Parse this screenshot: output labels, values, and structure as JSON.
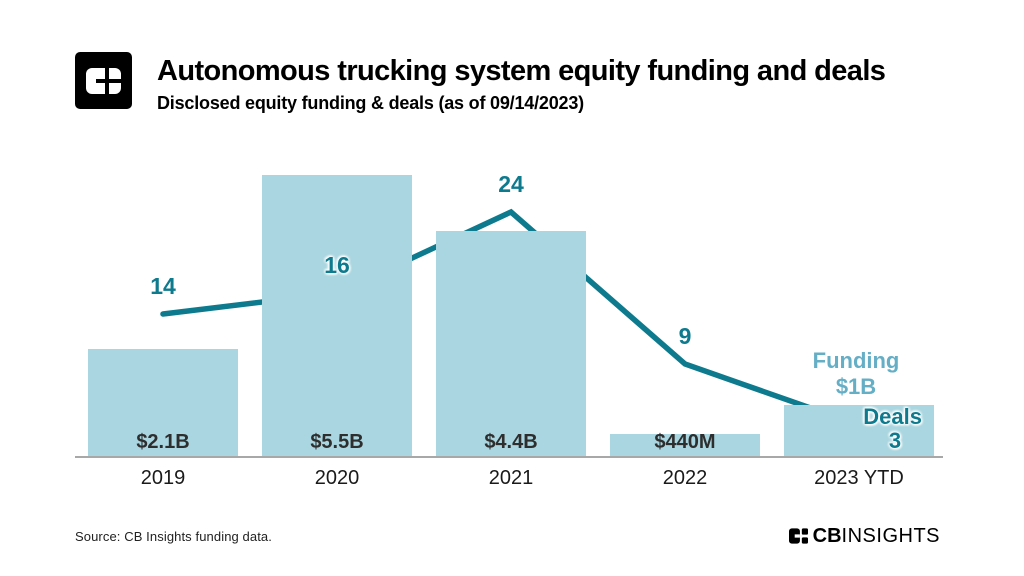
{
  "header": {
    "title": "Autonomous trucking system equity funding and deals",
    "subtitle": "Disclosed equity funding & deals (as of 09/14/2023)"
  },
  "chart_data": {
    "type": "bar+line",
    "title": "Autonomous trucking system equity funding and deals",
    "categories": [
      "2019",
      "2020",
      "2021",
      "2022",
      "2023 YTD"
    ],
    "series": [
      {
        "name": "Funding",
        "type": "bar",
        "unit": "USD billions",
        "values": [
          2.1,
          5.5,
          4.4,
          0.44,
          1.0
        ],
        "labels": [
          "$2.1B",
          "$5.5B",
          "$4.4B",
          "$440M",
          ""
        ]
      },
      {
        "name": "Deals",
        "type": "line",
        "values": [
          14,
          16,
          24,
          9,
          3
        ]
      }
    ],
    "grid": false,
    "legend_position": "annotations-at-last-point",
    "colors": {
      "bar": "#a9d6e0",
      "line": "#0e7a8e",
      "funding_annotation": "#64aec6"
    }
  },
  "annotations": {
    "funding_label": "Funding",
    "funding_value": "$1B",
    "deals_label": "Deals",
    "deals_value": "3"
  },
  "footer": {
    "source": "Source: CB Insights funding data.",
    "brand_cb": "CB",
    "brand_insights": "INSIGHTS"
  }
}
